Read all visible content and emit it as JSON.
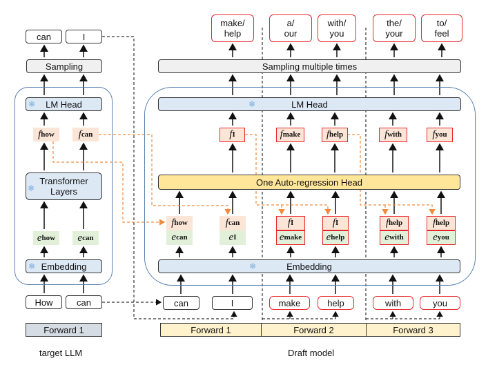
{
  "target": {
    "outputs": [
      "can",
      "I"
    ],
    "sampling": "Sampling",
    "lm_head": "LM Head",
    "features": [
      {
        "f": "f",
        "sub": "how"
      },
      {
        "f": "f",
        "sub": "can"
      }
    ],
    "transformer": "Transformer Layers",
    "embeds": [
      {
        "f": "e",
        "sub": "how"
      },
      {
        "f": "e",
        "sub": "can"
      }
    ],
    "embedding": "Embedding",
    "inputs": [
      "How",
      "can"
    ],
    "forward": "Forward 1",
    "caption": "target LLM"
  },
  "draft": {
    "outputs": [
      "make/ help",
      "a/ our",
      "with/ you",
      "the/ your",
      "to/ feel"
    ],
    "sampling": "Sampling multiple times",
    "lm_head": "LM Head",
    "features": [
      {
        "f": "f",
        "sub": "I"
      },
      {
        "f": "f",
        "sub": "make"
      },
      {
        "f": "f",
        "sub": "help"
      },
      {
        "f": "f",
        "sub": "with"
      },
      {
        "f": "f",
        "sub": "you"
      }
    ],
    "ar_head": "One Auto-regression Head",
    "pairs": [
      {
        "top": {
          "f": "f",
          "sub": "how"
        },
        "bot": {
          "f": "e",
          "sub": "can"
        }
      },
      {
        "top": {
          "f": "f",
          "sub": "can"
        },
        "bot": {
          "f": "e",
          "sub": "I"
        }
      },
      {
        "top": {
          "f": "f",
          "sub": "I"
        },
        "bot": {
          "f": "e",
          "sub": "make"
        }
      },
      {
        "top": {
          "f": "f",
          "sub": "I"
        },
        "bot": {
          "f": "e",
          "sub": "help"
        }
      },
      {
        "top": {
          "f": "f",
          "sub": "help"
        },
        "bot": {
          "f": "e",
          "sub": "with"
        }
      },
      {
        "top": {
          "f": "f",
          "sub": "help"
        },
        "bot": {
          "f": "e",
          "sub": "you"
        }
      }
    ],
    "embedding": "Embedding",
    "inputs": [
      "can",
      "I",
      "make",
      "help",
      "with",
      "you"
    ],
    "forwards": [
      "Forward 1",
      "Forward 2",
      "Forward 3"
    ],
    "caption": "Draft model"
  },
  "colors": {
    "draft_highlight": "#e8262a",
    "feature": "#fbe5d6",
    "embedding_vec": "#e2f0d9",
    "frozen_block": "#dde8f5",
    "ar_head": "#ffe699",
    "forward": "#fff2cc",
    "feature_flow": "#f08a3c"
  },
  "icons": [
    "snowflake-icon"
  ]
}
